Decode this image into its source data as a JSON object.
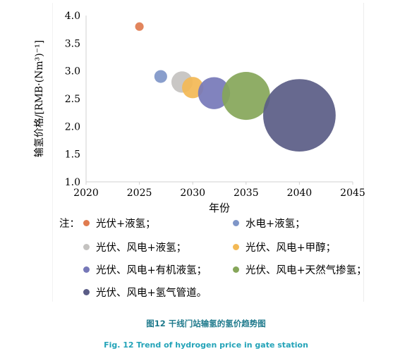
{
  "chart_data": {
    "type": "scatter",
    "xlabel": "年份",
    "ylabel": "输氢价格/[RMB·(Nm³)⁻¹]",
    "xlim": [
      2020,
      2045
    ],
    "ylim": [
      1.0,
      4.0
    ],
    "xticks": [
      "2020",
      "2025",
      "2030",
      "2035",
      "2040",
      "2045"
    ],
    "yticks": [
      "1.0",
      "1.5",
      "2.0",
      "2.5",
      "3.0",
      "3.5",
      "4.0"
    ],
    "grid": false,
    "legend_prefix": "注：",
    "legend_placement": "bottom",
    "series": [
      {
        "name": "光伏+液氢；",
        "color": "#e07b4f",
        "points": [
          {
            "x": 2025,
            "y": 3.8,
            "size": 0.8
          }
        ]
      },
      {
        "name": "水电+液氢；",
        "color": "#7f96c8",
        "points": [
          {
            "x": 2027,
            "y": 2.9,
            "size": 1.2
          }
        ]
      },
      {
        "name": "光伏、风电+液氢；",
        "color": "#c4c2c0",
        "points": [
          {
            "x": 2029,
            "y": 2.8,
            "size": 2.0
          }
        ]
      },
      {
        "name": "光伏、风电+甲醇；",
        "color": "#f3b955",
        "points": [
          {
            "x": 2030,
            "y": 2.7,
            "size": 2.0
          }
        ]
      },
      {
        "name": "光伏、风电+有机液氢；",
        "color": "#7678b8",
        "points": [
          {
            "x": 2032,
            "y": 2.6,
            "size": 3.0
          }
        ]
      },
      {
        "name": "光伏、风电+天然气掺氢；",
        "color": "#86a659",
        "points": [
          {
            "x": 2035,
            "y": 2.55,
            "size": 4.5
          }
        ]
      },
      {
        "name": "光伏、风电+氢气管道。",
        "color": "#5a5c86",
        "points": [
          {
            "x": 2040,
            "y": 2.2,
            "size": 6.8
          }
        ]
      }
    ]
  },
  "caption": {
    "cn": "图12 干线门站输氢的氢价趋势图",
    "en": "Fig. 12 Trend of hydrogen price in gate station"
  }
}
